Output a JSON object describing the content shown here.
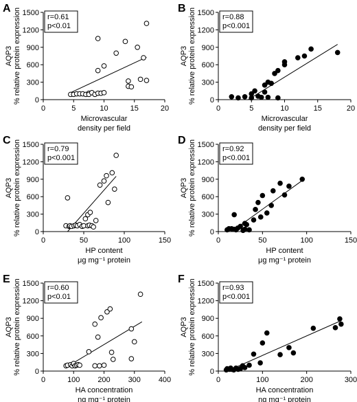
{
  "chart_data": [
    {
      "panel": "A",
      "type": "scatter",
      "marker": "open",
      "stats": [
        "r=0.61",
        "p<0.01"
      ],
      "ylabel_lines": [
        "AQP3",
        "% relative protein expression"
      ],
      "xlabel_lines": [
        "Microvascular",
        "density per field"
      ],
      "xlim": [
        0,
        20
      ],
      "ylim": [
        0,
        1500
      ],
      "xticks": [
        "0",
        "5",
        "10",
        "15",
        "20"
      ],
      "yticks": [
        "0",
        "300",
        "600",
        "900",
        "1200",
        "1500"
      ],
      "x": [
        4.5,
        5.0,
        5.5,
        6.0,
        6.5,
        7.0,
        7.5,
        7.5,
        8.0,
        8.5,
        9.0,
        9.0,
        9.0,
        9.5,
        10.0,
        10.0,
        12.0,
        13.5,
        14.0,
        14.0,
        14.5,
        15.5,
        16.0,
        16.5,
        17.0,
        17.0
      ],
      "y": [
        90,
        90,
        100,
        100,
        100,
        90,
        110,
        90,
        120,
        90,
        110,
        1050,
        500,
        110,
        580,
        120,
        800,
        1000,
        230,
        320,
        220,
        900,
        350,
        720,
        1310,
        330
      ],
      "fit": [
        [
          4.5,
          120
        ],
        [
          17,
          730
        ]
      ]
    },
    {
      "panel": "B",
      "type": "scatter",
      "marker": "filled",
      "stats": [
        "r=0.88",
        "p<0.001"
      ],
      "ylabel_lines": [
        "AQP3",
        "% relative protein expression"
      ],
      "xlabel_lines": [
        "Microvascular",
        "density per field"
      ],
      "xlim": [
        0,
        20
      ],
      "ylim": [
        0,
        1500
      ],
      "xticks": [
        "0",
        "5",
        "10",
        "15",
        "20"
      ],
      "yticks": [
        "0",
        "300",
        "600",
        "900",
        "1200",
        "1500"
      ],
      "x": [
        2.0,
        3.0,
        4.0,
        5.0,
        5.0,
        5.5,
        6.0,
        6.5,
        7.0,
        7.0,
        7.5,
        7.5,
        8.0,
        8.5,
        9.0,
        9.0,
        10.0,
        10.0,
        12.0,
        13.0,
        14.0,
        18.0
      ],
      "y": [
        50,
        30,
        50,
        30,
        100,
        150,
        60,
        40,
        250,
        130,
        300,
        40,
        280,
        450,
        500,
        30,
        600,
        650,
        720,
        750,
        870,
        810
      ],
      "fit": [
        [
          4.5,
          0
        ],
        [
          18,
          950
        ]
      ]
    },
    {
      "panel": "C",
      "type": "scatter",
      "marker": "open",
      "stats": [
        "r=0.79",
        "p<0.001"
      ],
      "ylabel_lines": [
        "AQP3",
        "% relative protein expression"
      ],
      "xlabel_lines": [
        "HP content",
        "μg mg⁻¹ protein"
      ],
      "xlim": [
        0,
        150
      ],
      "ylim": [
        0,
        1500
      ],
      "xticks": [
        "0",
        "50",
        "100",
        "150"
      ],
      "yticks": [
        "0",
        "300",
        "600",
        "900",
        "1200",
        "1500"
      ],
      "x": [
        28,
        30,
        32,
        33,
        35,
        38,
        40,
        42,
        45,
        48,
        50,
        52,
        55,
        55,
        57,
        58,
        60,
        62,
        65,
        70,
        75,
        78,
        80,
        85,
        88,
        90
      ],
      "y": [
        100,
        580,
        90,
        100,
        90,
        100,
        110,
        100,
        120,
        90,
        100,
        220,
        290,
        100,
        110,
        330,
        100,
        80,
        190,
        800,
        870,
        960,
        500,
        1010,
        730,
        1310
      ],
      "fit": [
        [
          30,
          0
        ],
        [
          90,
          950
        ]
      ]
    },
    {
      "panel": "D",
      "type": "scatter",
      "marker": "filled",
      "stats": [
        "r=0.92",
        "p<0.001"
      ],
      "ylabel_lines": [
        "AQP3",
        "% relative protein expression"
      ],
      "xlabel_lines": [
        "HP content",
        "μg mg⁻¹ protein"
      ],
      "xlim": [
        0,
        150
      ],
      "ylim": [
        0,
        1500
      ],
      "xticks": [
        "0",
        "50",
        "100",
        "150"
      ],
      "yticks": [
        "0",
        "300",
        "600",
        "900",
        "1200",
        "1500"
      ],
      "x": [
        10,
        12,
        15,
        18,
        18,
        20,
        22,
        25,
        28,
        30,
        30,
        32,
        35,
        40,
        42,
        45,
        48,
        50,
        55,
        60,
        62,
        70,
        75,
        80,
        95
      ],
      "y": [
        30,
        50,
        50,
        40,
        290,
        30,
        60,
        90,
        20,
        40,
        140,
        120,
        30,
        200,
        380,
        500,
        250,
        620,
        320,
        450,
        700,
        830,
        630,
        780,
        900
      ],
      "fit": [
        [
          15,
          0
        ],
        [
          97,
          900
        ]
      ]
    },
    {
      "panel": "E",
      "type": "scatter",
      "marker": "open",
      "stats": [
        "r=0.60",
        "p<0.01"
      ],
      "ylabel_lines": [
        "AQP3",
        "% relative protein expression"
      ],
      "xlabel_lines": [
        "HA concentration",
        "ng mg⁻¹ protein"
      ],
      "xlim": [
        0,
        400
      ],
      "ylim": [
        0,
        1500
      ],
      "xticks": [
        "0",
        "100",
        "200",
        "300",
        "400"
      ],
      "yticks": [
        "0",
        "300",
        "600",
        "900",
        "1200",
        "1500"
      ],
      "x": [
        75,
        80,
        90,
        95,
        100,
        100,
        105,
        110,
        115,
        120,
        150,
        170,
        170,
        180,
        185,
        190,
        200,
        210,
        220,
        225,
        230,
        290,
        290,
        300,
        320
      ],
      "y": [
        90,
        100,
        110,
        90,
        120,
        130,
        90,
        100,
        110,
        100,
        330,
        800,
        90,
        580,
        90,
        910,
        100,
        1010,
        1060,
        320,
        200,
        210,
        720,
        500,
        1310
      ],
      "fit": [
        [
          80,
          80
        ],
        [
          325,
          840
        ]
      ]
    },
    {
      "panel": "F",
      "type": "scatter",
      "marker": "filled",
      "stats": [
        "r=0.93",
        "p<0.001"
      ],
      "ylabel_lines": [
        "AQP3",
        "% relative protein expression"
      ],
      "xlabel_lines": [
        "HA concentration",
        "ng mg⁻¹ protein"
      ],
      "xlim": [
        0,
        300
      ],
      "ylim": [
        0,
        1500
      ],
      "xticks": [
        "0",
        "100",
        "200",
        "300"
      ],
      "yticks": [
        "0",
        "300",
        "600",
        "900",
        "1200",
        "1500"
      ],
      "x": [
        18,
        20,
        25,
        28,
        30,
        35,
        40,
        45,
        50,
        55,
        60,
        70,
        80,
        95,
        100,
        110,
        140,
        160,
        170,
        215,
        265,
        275,
        278
      ],
      "y": [
        20,
        40,
        30,
        50,
        30,
        20,
        50,
        30,
        40,
        90,
        60,
        100,
        290,
        140,
        480,
        650,
        280,
        400,
        310,
        730,
        740,
        890,
        800
      ],
      "fit": [
        [
          20,
          0
        ],
        [
          278,
          860
        ]
      ]
    }
  ]
}
